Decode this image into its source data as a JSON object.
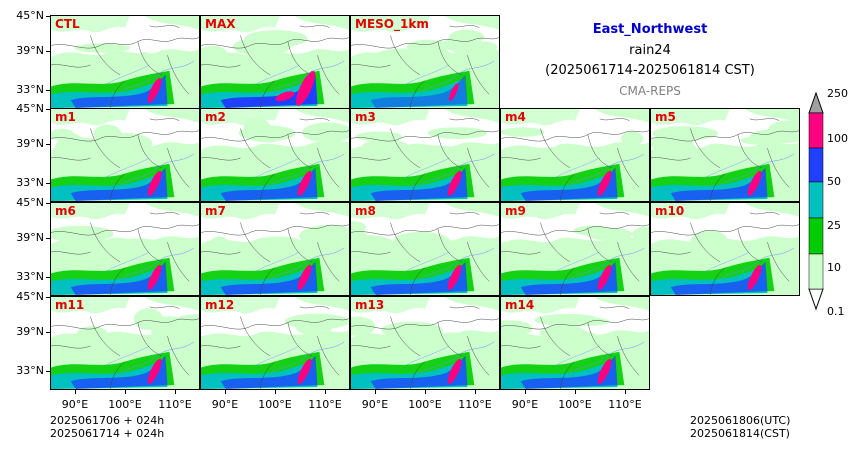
{
  "title": {
    "region": "East_Northwest",
    "variable": "rain24",
    "period": "(2025061714-2025061814 CST)",
    "source": "CMA-REPS"
  },
  "lat_labels": [
    "45°N",
    "39°N",
    "33°N"
  ],
  "lon_labels": [
    "90°E",
    "100°E",
    "110°E"
  ],
  "panels": [
    "CTL",
    "MAX",
    "MESO_1km",
    "m1",
    "m2",
    "m3",
    "m4",
    "m5",
    "m6",
    "m7",
    "m8",
    "m9",
    "m10",
    "m11",
    "m12",
    "m13",
    "m14"
  ],
  "colorbar": {
    "levels": [
      "0.1",
      "10",
      "25",
      "50",
      "100",
      "250"
    ],
    "colors": [
      "#ccffcc",
      "#00cc00",
      "#00c0c0",
      "#2040ff",
      "#ff0080",
      "#a0a0a0"
    ]
  },
  "footer": {
    "init_utc": "2025061706  +  024h",
    "init_cst": "2025061714  +  024h",
    "valid_utc": "2025061806(UTC)",
    "valid_cst": "2025061814(CST)"
  }
}
